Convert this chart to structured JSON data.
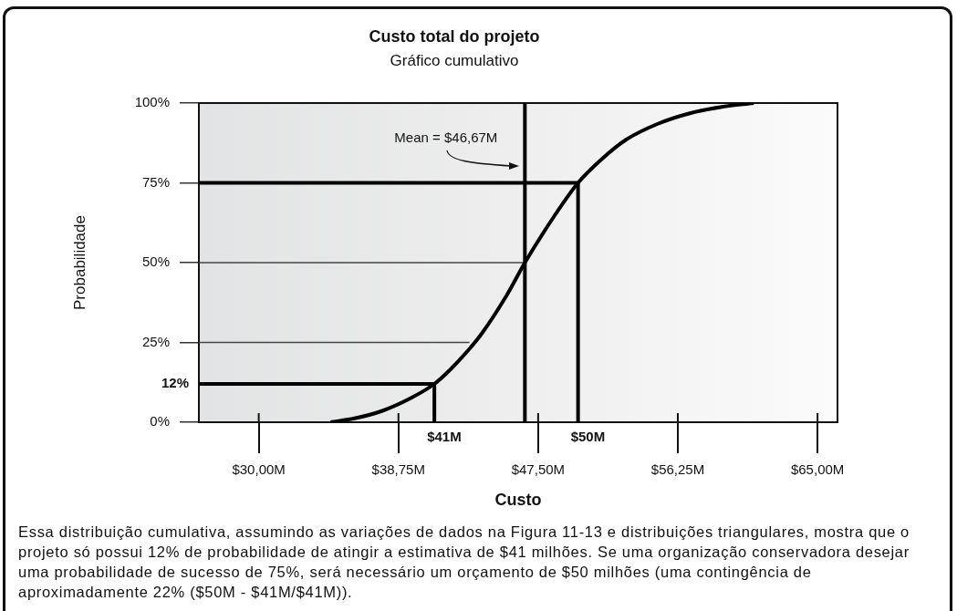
{
  "chart_data": {
    "type": "line",
    "title": "Custo total do projeto",
    "subtitle": "Gráfico cumulativo",
    "xlabel": "Custo",
    "ylabel": "Probabilidade",
    "xlim": [
      26.25,
      66.25
    ],
    "xticks": [
      {
        "value": 30,
        "label": "$30,00M"
      },
      {
        "value": 38.75,
        "label": "$38,75M"
      },
      {
        "value": 47.5,
        "label": "$47,50M"
      },
      {
        "value": 56.25,
        "label": "$56,25M"
      },
      {
        "value": 65,
        "label": "$65,00M"
      }
    ],
    "ylim": [
      0,
      100
    ],
    "yticks": [
      {
        "value": 0,
        "label": "0%"
      },
      {
        "value": 25,
        "label": "25%"
      },
      {
        "value": 50,
        "label": "50%"
      },
      {
        "value": 75,
        "label": "75%"
      },
      {
        "value": 100,
        "label": "100%"
      }
    ],
    "marker": "none",
    "series": [
      {
        "color": "#000000",
        "x": [
          34.5,
          36,
          37.7,
          39.5,
          41,
          42,
          43.2,
          44,
          45.5,
          46.67,
          48.5,
          50,
          51.5,
          53,
          55,
          57,
          59,
          61
        ],
        "values": [
          0,
          1.2,
          3.5,
          7.5,
          12,
          16.5,
          23,
          28,
          39.5,
          50,
          64.5,
          75,
          82.5,
          88.5,
          93.5,
          96.8,
          98.8,
          100
        ]
      },
      {
        "color": "#000000",
        "x": [
          26.25,
          41,
          41
        ],
        "values": [
          12,
          12,
          0
        ]
      },
      {
        "color": "#000000",
        "x": [
          26.25,
          50,
          50
        ],
        "values": [
          75,
          75,
          0
        ]
      },
      {
        "color": "#444444",
        "x": [
          26.25,
          43.2
        ],
        "values": [
          25,
          25
        ]
      },
      {
        "color": "#444444",
        "x": [
          26.25,
          46.67
        ],
        "values": [
          50,
          50
        ]
      }
    ],
    "ref_lines": [
      {
        "axis": "x",
        "value": 46.67,
        "label": "Mean = $46,67M",
        "color": "#000000"
      }
    ],
    "annotations": [
      {
        "text": "12%",
        "x": 26.25,
        "y": 12
      },
      {
        "text": "$41M",
        "x": 41,
        "y": 0
      },
      {
        "text": "$50M",
        "x": 50,
        "y": 0
      },
      "Essa distribuição cumulativa, assumindo as variações de dados na Figura 11-13 e distribuições triangulares, mostra que o projeto só possui 12% de probabilidade de atingir a estimativa de $41 milhões. Se uma organização conservadora desejar uma probabilidade de sucesso de 75%, será necessário um orçamento de $50 milhões (uma contingência de aproximadamente 22% ($50M - $41M/$41M))."
    ]
  }
}
